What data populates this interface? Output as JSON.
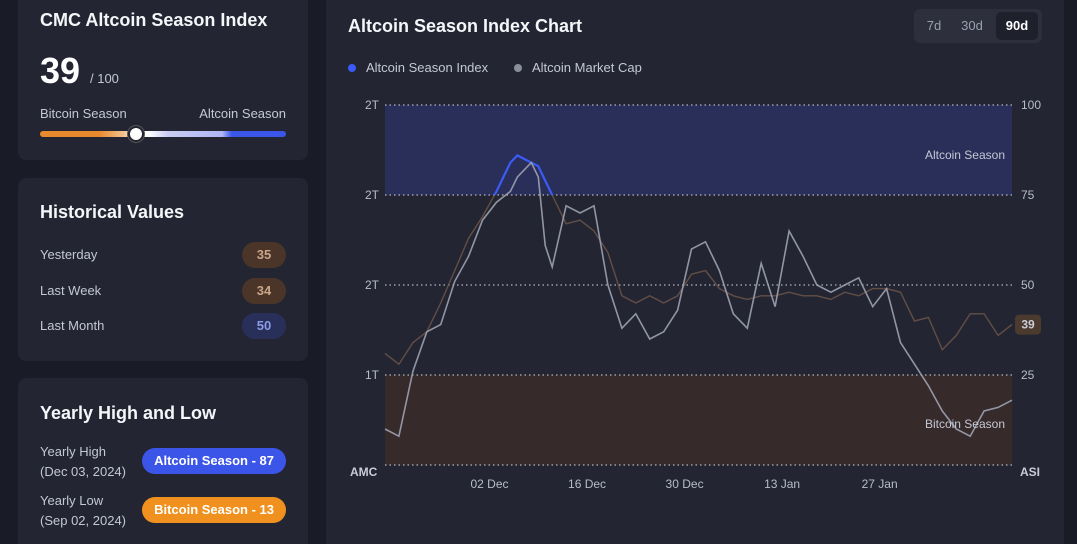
{
  "index_card": {
    "title": "CMC Altcoin Season Index",
    "value": "39",
    "max": "/ 100",
    "left_label": "Bitcoin Season",
    "right_label": "Altcoin Season",
    "meter_level": 0.39
  },
  "historical": {
    "title": "Historical Values",
    "rows": [
      {
        "label": "Yesterday",
        "value": "35",
        "tone": "brown"
      },
      {
        "label": "Last Week",
        "value": "34",
        "tone": "brown"
      },
      {
        "label": "Last Month",
        "value": "50",
        "tone": "blue"
      }
    ]
  },
  "yearly": {
    "title": "Yearly High and Low",
    "high": {
      "label": "Yearly High",
      "date": "(Dec 03, 2024)",
      "badge": "Altcoin Season - 87",
      "color": "#3b55e8"
    },
    "low": {
      "label": "Yearly Low",
      "date": "(Sep 02, 2024)",
      "badge": "Bitcoin Season - 13",
      "color": "#f0901e"
    }
  },
  "chart_panel": {
    "title": "Altcoin Season Index Chart",
    "tabs": [
      {
        "label": "7d",
        "active": false
      },
      {
        "label": "30d",
        "active": false
      },
      {
        "label": "90d",
        "active": true
      }
    ],
    "legend": [
      {
        "label": "Altcoin Season Index",
        "color": "#3b5bf5"
      },
      {
        "label": "Altcoin Market Cap",
        "color": "#8a8e9c"
      }
    ],
    "zone_top_label": "Altcoin Season",
    "zone_bottom_label": "Bitcoin Season",
    "left_axis_title": "AMC",
    "right_axis_title": "ASI",
    "current_value_badge": "39"
  },
  "chart_data": {
    "type": "line",
    "xlabel": "",
    "ylabel": "",
    "x_tick_labels": [
      "02 Dec",
      "16 Dec",
      "30 Dec",
      "13 Jan",
      "27 Jan"
    ],
    "x_tick_days": [
      15,
      29,
      43,
      57,
      71
    ],
    "x_range_days": [
      0,
      90
    ],
    "y_right_range": [
      0,
      100
    ],
    "y_right_ticks": [
      25,
      50,
      75,
      100
    ],
    "y_left_tick_labels": [
      "1T",
      "2T",
      "2T",
      "2T"
    ],
    "zones": [
      {
        "label": "Altcoin Season",
        "from": 75,
        "to": 100,
        "color": "#2a3160"
      },
      {
        "label": "Bitcoin Season",
        "from": 0,
        "to": 25,
        "color": "#3a2c2a"
      }
    ],
    "grid": "dotted horizontal at 0, 25, 50, 75, 100",
    "series": [
      {
        "name": "Altcoin Season Index",
        "axis": "right",
        "x": [
          0,
          2,
          4,
          6,
          8,
          10,
          12,
          14,
          16,
          17,
          18,
          19,
          20,
          21,
          22,
          23,
          24,
          26,
          28,
          30,
          32,
          34,
          36,
          38,
          40,
          42,
          44,
          46,
          48,
          50,
          52,
          54,
          56,
          58,
          60,
          62,
          64,
          66,
          68,
          70,
          72,
          74,
          76,
          78,
          80,
          82,
          84,
          86,
          88,
          90
        ],
        "y": [
          31,
          28,
          34,
          37,
          45,
          54,
          63,
          69,
          76,
          80,
          84,
          86,
          85,
          84,
          83,
          79,
          75,
          67,
          68,
          65,
          59,
          47,
          45,
          47,
          45,
          47,
          53,
          54,
          49,
          47,
          46,
          47,
          47,
          48,
          47,
          47,
          46,
          48,
          47,
          49,
          49,
          48,
          40,
          41,
          32,
          36,
          42,
          42,
          36,
          39
        ],
        "color": "#3b5bf5"
      },
      {
        "name": "Altcoin Market Cap",
        "axis": "left",
        "x": [
          0,
          2,
          4,
          6,
          8,
          10,
          12,
          14,
          16,
          18,
          19,
          20,
          21,
          22,
          23,
          24,
          26,
          28,
          30,
          32,
          34,
          36,
          38,
          40,
          42,
          44,
          46,
          48,
          50,
          52,
          54,
          56,
          58,
          60,
          62,
          64,
          66,
          68,
          70,
          72,
          74,
          76,
          78,
          80,
          82,
          84,
          86,
          88,
          90
        ],
        "y": [
          10,
          8,
          26,
          37,
          39,
          51,
          58,
          68,
          73,
          76,
          80,
          82,
          84,
          80,
          61,
          55,
          72,
          70,
          72,
          50,
          38,
          42,
          35,
          37,
          43,
          60,
          62,
          54,
          42,
          38,
          56,
          44,
          65,
          58,
          50,
          48,
          50,
          52,
          44,
          49,
          34,
          28,
          22,
          15,
          10,
          8,
          15,
          16,
          18
        ],
        "color": "#9ea2b0"
      }
    ]
  }
}
